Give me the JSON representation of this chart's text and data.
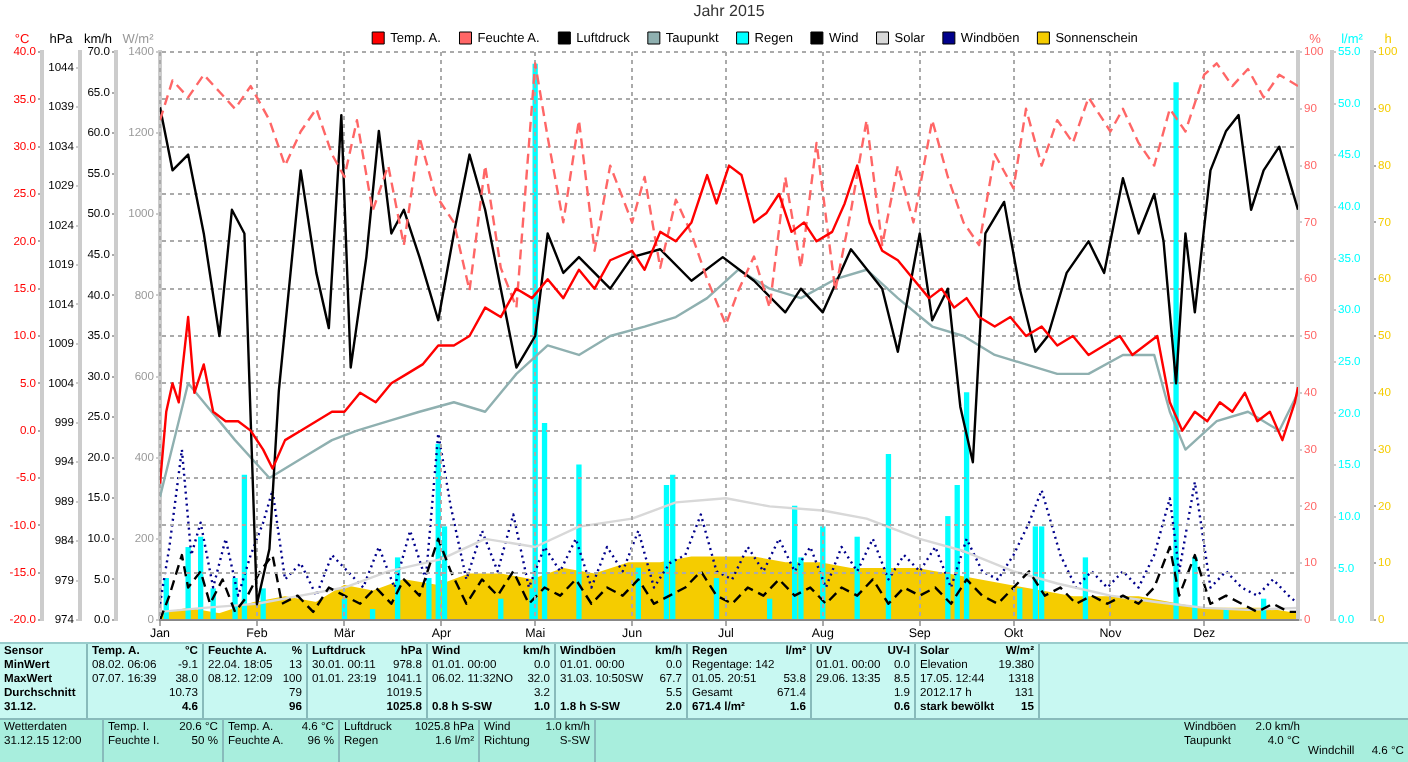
{
  "chart_data": [
    {
      "type": "line",
      "title": "Jahr 2015",
      "grid": true,
      "legend": "top",
      "marker": "none",
      "xlim": [
        "2015-01-01",
        "2015-12-31"
      ],
      "xticks": [
        {
          "value": "2015-01-01",
          "label": "Jan"
        },
        {
          "value": "2015-02-01",
          "label": "Feb"
        },
        {
          "value": "2015-03-01",
          "label": "Mär"
        },
        {
          "value": "2015-04-01",
          "label": "Apr"
        },
        {
          "value": "2015-05-01",
          "label": "Mai"
        },
        {
          "value": "2015-06-01",
          "label": "Jun"
        },
        {
          "value": "2015-07-01",
          "label": "Jul"
        },
        {
          "value": "2015-08-01",
          "label": "Aug"
        },
        {
          "value": "2015-09-01",
          "label": "Sep"
        },
        {
          "value": "2015-10-01",
          "label": "Okt"
        },
        {
          "value": "2015-11-01",
          "label": "Nov"
        },
        {
          "value": "2015-12-01",
          "label": "Dez"
        }
      ],
      "ylabel": "°C",
      "ylim": [
        -20,
        40
      ],
      "yticks": [
        {
          "value": -20,
          "label": "-20.0"
        },
        {
          "value": -15,
          "label": "-15.0"
        },
        {
          "value": -10,
          "label": "-10.0"
        },
        {
          "value": -5,
          "label": "-5.0"
        },
        {
          "value": 0,
          "label": "0.0"
        },
        {
          "value": 5,
          "label": "5.0"
        },
        {
          "value": 10,
          "label": "10.0"
        },
        {
          "value": 15,
          "label": "15.0"
        },
        {
          "value": 20,
          "label": "20.0"
        },
        {
          "value": 25,
          "label": "25.0"
        },
        {
          "value": 30,
          "label": "30.0"
        },
        {
          "value": 35,
          "label": "35.0"
        },
        {
          "value": 40,
          "label": "40.0"
        }
      ],
      "y2label": "hPa",
      "y2lim": [
        974,
        1046
      ],
      "y2ticks": [
        974,
        979,
        984,
        989,
        994,
        999,
        1004,
        1009,
        1014,
        1019,
        1024,
        1029,
        1034,
        1039,
        1044
      ],
      "y3label": "%",
      "y3lim": [
        0,
        100
      ],
      "y3ticks": [
        0,
        10,
        20,
        30,
        40,
        50,
        60,
        70,
        80,
        90,
        100
      ],
      "series": [
        {
          "name": "Temp. A.",
          "color": "#ff0000",
          "x": [
            "2015-01-01",
            "2015-01-03",
            "2015-01-05",
            "2015-01-07",
            "2015-01-10",
            "2015-01-12",
            "2015-01-15",
            "2015-01-18",
            "2015-01-22",
            "2015-01-26",
            "2015-01-30",
            "2015-02-03",
            "2015-02-06",
            "2015-02-10",
            "2015-02-15",
            "2015-02-20",
            "2015-02-25",
            "2015-03-01",
            "2015-03-06",
            "2015-03-11",
            "2015-03-16",
            "2015-03-21",
            "2015-03-26",
            "2015-03-31",
            "2015-04-05",
            "2015-04-10",
            "2015-04-15",
            "2015-04-20",
            "2015-04-25",
            "2015-04-30",
            "2015-05-05",
            "2015-05-10",
            "2015-05-15",
            "2015-05-20",
            "2015-05-25",
            "2015-06-01",
            "2015-06-05",
            "2015-06-10",
            "2015-06-15",
            "2015-06-20",
            "2015-06-25",
            "2015-06-28",
            "2015-07-02",
            "2015-07-06",
            "2015-07-10",
            "2015-07-14",
            "2015-07-18",
            "2015-07-22",
            "2015-07-26",
            "2015-07-30",
            "2015-08-04",
            "2015-08-08",
            "2015-08-12",
            "2015-08-16",
            "2015-08-20",
            "2015-08-25",
            "2015-08-30",
            "2015-09-04",
            "2015-09-08",
            "2015-09-12",
            "2015-09-16",
            "2015-09-20",
            "2015-09-25",
            "2015-09-30",
            "2015-10-05",
            "2015-10-10",
            "2015-10-15",
            "2015-10-20",
            "2015-10-25",
            "2015-10-30",
            "2015-11-04",
            "2015-11-08",
            "2015-11-12",
            "2015-11-16",
            "2015-11-20",
            "2015-11-24",
            "2015-11-28",
            "2015-12-02",
            "2015-12-06",
            "2015-12-10",
            "2015-12-14",
            "2015-12-18",
            "2015-12-22",
            "2015-12-26",
            "2015-12-30",
            "2015-12-31"
          ],
          "values": [
            -5.6,
            2,
            5,
            3,
            12,
            4,
            7,
            2,
            1,
            1,
            0,
            -2,
            -4,
            -1,
            0,
            1,
            2,
            2,
            4,
            3,
            5,
            6,
            7,
            9,
            9,
            10,
            13,
            12,
            15,
            14,
            16,
            14,
            17,
            15,
            18,
            19,
            17,
            21,
            20,
            22,
            27,
            24,
            28,
            27,
            22,
            23,
            25,
            21,
            22,
            20,
            21,
            24,
            28,
            22,
            19,
            18,
            16,
            14,
            15,
            13,
            14,
            12,
            11,
            12,
            10,
            11,
            9,
            10,
            8,
            9,
            10,
            8,
            9,
            10,
            3,
            0,
            2,
            1,
            3,
            2,
            4,
            1,
            2,
            -1,
            3,
            4.6
          ]
        },
        {
          "name": "Feuchte A.",
          "color": "#ff6666",
          "axis": "y3",
          "line_style": "dashed",
          "x": [
            "2015-01-01",
            "2015-01-05",
            "2015-01-10",
            "2015-01-15",
            "2015-01-20",
            "2015-01-25",
            "2015-01-30",
            "2015-02-05",
            "2015-02-10",
            "2015-02-15",
            "2015-02-20",
            "2015-02-25",
            "2015-03-01",
            "2015-03-05",
            "2015-03-10",
            "2015-03-15",
            "2015-03-20",
            "2015-03-25",
            "2015-03-30",
            "2015-04-05",
            "2015-04-10",
            "2015-04-15",
            "2015-04-20",
            "2015-04-25",
            "2015-05-01",
            "2015-05-05",
            "2015-05-10",
            "2015-05-15",
            "2015-05-20",
            "2015-05-25",
            "2015-06-01",
            "2015-06-05",
            "2015-06-10",
            "2015-06-15",
            "2015-06-20",
            "2015-06-25",
            "2015-07-01",
            "2015-07-05",
            "2015-07-10",
            "2015-07-15",
            "2015-07-20",
            "2015-07-25",
            "2015-07-30",
            "2015-08-05",
            "2015-08-10",
            "2015-08-15",
            "2015-08-20",
            "2015-08-25",
            "2015-08-30",
            "2015-09-05",
            "2015-09-10",
            "2015-09-15",
            "2015-09-20",
            "2015-09-25",
            "2015-10-01",
            "2015-10-05",
            "2015-10-10",
            "2015-10-15",
            "2015-10-20",
            "2015-10-25",
            "2015-11-01",
            "2015-11-05",
            "2015-11-10",
            "2015-11-15",
            "2015-11-20",
            "2015-11-25",
            "2015-12-01",
            "2015-12-05",
            "2015-12-10",
            "2015-12-15",
            "2015-12-20",
            "2015-12-25",
            "2015-12-31"
          ],
          "values": [
            88,
            95,
            92,
            96,
            93,
            90,
            94,
            88,
            80,
            86,
            90,
            82,
            78,
            88,
            72,
            80,
            66,
            85,
            75,
            70,
            58,
            80,
            62,
            55,
            98,
            85,
            70,
            88,
            65,
            80,
            70,
            78,
            62,
            74,
            68,
            60,
            52,
            58,
            64,
            55,
            78,
            62,
            84,
            58,
            72,
            88,
            66,
            80,
            70,
            88,
            78,
            70,
            66,
            82,
            76,
            90,
            80,
            88,
            84,
            92,
            86,
            90,
            84,
            80,
            90,
            86,
            96,
            98,
            94,
            97,
            92,
            96,
            94
          ]
        },
        {
          "name": "Luftdruck",
          "color": "#000000",
          "axis": "y2",
          "x": [
            "2015-01-01",
            "2015-01-05",
            "2015-01-10",
            "2015-01-15",
            "2015-01-20",
            "2015-01-24",
            "2015-01-28",
            "2015-02-01",
            "2015-02-05",
            "2015-02-08",
            "2015-02-15",
            "2015-02-20",
            "2015-02-24",
            "2015-02-28",
            "2015-03-03",
            "2015-03-08",
            "2015-03-12",
            "2015-03-16",
            "2015-03-20",
            "2015-03-25",
            "2015-03-31",
            "2015-04-05",
            "2015-04-10",
            "2015-04-15",
            "2015-04-20",
            "2015-04-25",
            "2015-04-28",
            "2015-05-01",
            "2015-05-05",
            "2015-05-10",
            "2015-05-15",
            "2015-05-20",
            "2015-05-25",
            "2015-06-01",
            "2015-06-10",
            "2015-06-20",
            "2015-06-30",
            "2015-07-10",
            "2015-07-20",
            "2015-07-25",
            "2015-08-01",
            "2015-08-10",
            "2015-08-20",
            "2015-08-25",
            "2015-09-01",
            "2015-09-05",
            "2015-09-10",
            "2015-09-14",
            "2015-09-18",
            "2015-09-22",
            "2015-09-28",
            "2015-10-03",
            "2015-10-08",
            "2015-10-12",
            "2015-10-18",
            "2015-10-25",
            "2015-10-30",
            "2015-11-05",
            "2015-11-10",
            "2015-11-15",
            "2015-11-18",
            "2015-11-22",
            "2015-11-25",
            "2015-11-28",
            "2015-12-03",
            "2015-12-08",
            "2015-12-12",
            "2015-12-16",
            "2015-12-20",
            "2015-12-25",
            "2015-12-31"
          ],
          "values": [
            1039,
            1031,
            1033,
            1023,
            1010,
            1026,
            1023,
            976,
            983,
            1003,
            1031,
            1018,
            1011,
            1038,
            1006,
            1020,
            1036,
            1023,
            1026,
            1020,
            1012,
            1023,
            1033,
            1026,
            1016,
            1006,
            1008,
            1010,
            1023,
            1018,
            1020,
            1018,
            1016,
            1020,
            1021,
            1017,
            1020,
            1017,
            1013,
            1016,
            1013,
            1021,
            1016,
            1008,
            1023,
            1012,
            1016,
            1001,
            994,
            1023,
            1027,
            1016,
            1008,
            1010,
            1018,
            1022,
            1018,
            1030,
            1023,
            1028,
            1022,
            1004,
            1023,
            1013,
            1031,
            1036,
            1038,
            1026,
            1031,
            1034,
            1026
          ]
        },
        {
          "name": "Taupunkt",
          "color": "#8fb0b0",
          "x": [
            "2015-01-01",
            "2015-01-10",
            "2015-01-15",
            "2015-01-25",
            "2015-02-05",
            "2015-02-15",
            "2015-02-25",
            "2015-03-05",
            "2015-03-15",
            "2015-03-25",
            "2015-04-05",
            "2015-04-15",
            "2015-04-25",
            "2015-05-05",
            "2015-05-15",
            "2015-05-25",
            "2015-06-05",
            "2015-06-15",
            "2015-06-25",
            "2015-07-05",
            "2015-07-15",
            "2015-07-25",
            "2015-08-05",
            "2015-08-15",
            "2015-08-25",
            "2015-09-05",
            "2015-09-15",
            "2015-09-25",
            "2015-10-05",
            "2015-10-15",
            "2015-10-25",
            "2015-11-05",
            "2015-11-15",
            "2015-11-20",
            "2015-11-25",
            "2015-12-05",
            "2015-12-15",
            "2015-12-25",
            "2015-12-31"
          ],
          "values": [
            -7,
            5,
            3,
            -1,
            -5,
            -3,
            -1,
            0,
            1,
            2,
            3,
            2,
            6,
            9,
            8,
            10,
            11,
            12,
            14,
            17,
            15,
            14,
            16,
            17,
            14,
            11,
            10,
            8,
            7,
            6,
            6,
            8,
            8,
            2,
            -2,
            1,
            2,
            0,
            4
          ]
        }
      ],
      "annotations": [
        "Sensor\nMinWert\nMaxWert\nDurchschnitt\n31.12.",
        "Temp. A.\t°C\n08.02. 06:06\t-9.1\n07.07. 16:39\t38.0\n\t10.73\n\t4.6",
        "Feuchte A.\t%\n22.04. 18:05\t13\n08.12. 12:09\t100\n\t79\n\t96",
        "Luftdruck\thPa\n30.01. 00:11\t978.8\n01.01. 23:19\t1041.1\n\t1019.5\n\t1025.8",
        "Wind\tkm/h\n01.01. 00:00\t0.0\n06.02. 11:32NO\t32.0\n\t3.2\n0.8 h S-SW\t1.0",
        "Windböen\tkm/h\n01.01. 00:00\t0.0\n31.03. 10:50SW\t67.7\n\t5.5\n1.8 h S-SW\t2.0",
        "Regen\tl/m²\nRegentage: 142\n01.05. 20:51\t53.8\nGesamt\t671.4\n671.4 l/m²\t1.6",
        "UV\tUV-I\n01.01. 00:00\t0.0\n29.06. 13:35\t8.5\n\t1.9\n\t0.6",
        "Solar\tW/m²\nElevation\t19.380\n17.05. 12:44\t1318\n2012.17 h\t131\nstark bewölkt\t15",
        "Wetterdaten\n31.12.15 12:00",
        "Temp. I.\t20.6 °C\nFeuchte I.\t50 %",
        "Temp. A.\t4.6 °C\nFeuchte A.\t96 %",
        "Luftdruck\t1025.8 hPa\nRegen\t1.6 l/m²",
        "Wind\t1.0 km/h\nRichtung\tS-SW",
        "Windböen\t2.0 km/h\nTaupunkt\t4.0 °C",
        "Windchill\t4.6 °C"
      ]
    },
    {
      "type": "line",
      "legend": "top",
      "marker": "none",
      "tick_labels": "y",
      "xlim": [
        "2015-01-01",
        "2015-12-31"
      ],
      "ylabel": "km/h",
      "ylim": [
        0,
        70
      ],
      "yticks": [
        {
          "value": 0,
          "label": "0.0"
        },
        {
          "value": 5,
          "label": "5.0"
        },
        {
          "value": 10,
          "label": "10.0"
        },
        {
          "value": 15,
          "label": "15.0"
        },
        {
          "value": 20,
          "label": "20.0"
        },
        {
          "value": 25,
          "label": "25.0"
        },
        {
          "value": 30,
          "label": "30.0"
        },
        {
          "value": 35,
          "label": "35.0"
        },
        {
          "value": 40,
          "label": "40.0"
        },
        {
          "value": 45,
          "label": "45.0"
        },
        {
          "value": 50,
          "label": "50.0"
        },
        {
          "value": 55,
          "label": "55.0"
        },
        {
          "value": 60,
          "label": "60.0"
        },
        {
          "value": 65,
          "label": "65.0"
        },
        {
          "value": 70,
          "label": "70.0"
        }
      ],
      "y2label": "W/m²",
      "y2lim": [
        0,
        1400
      ],
      "y2ticks": [
        0,
        200,
        400,
        600,
        800,
        1000,
        1200,
        1400
      ],
      "y3label": "l/m²",
      "y3lim": [
        0,
        55
      ],
      "y3ticks": [
        {
          "value": 0,
          "label": "0.0"
        },
        {
          "value": 5,
          "label": "5.0"
        },
        {
          "value": 10,
          "label": "10.0"
        },
        {
          "value": 15,
          "label": "15.0"
        },
        {
          "value": 20,
          "label": "20.0"
        },
        {
          "value": 25,
          "label": "25.0"
        },
        {
          "value": 30,
          "label": "30.0"
        },
        {
          "value": 35,
          "label": "35.0"
        },
        {
          "value": 40,
          "label": "40.0"
        },
        {
          "value": 45,
          "label": "45.0"
        },
        {
          "value": 50,
          "label": "50.0"
        },
        {
          "value": 55,
          "label": "55.0"
        }
      ],
      "series": [
        {
          "name": "Regen",
          "color": "#00ffff",
          "type": "bar",
          "axis": "y3",
          "x": [
            "2015-01-03",
            "2015-01-10",
            "2015-01-14",
            "2015-01-18",
            "2015-01-25",
            "2015-01-28",
            "2015-02-03",
            "2015-03-01",
            "2015-03-10",
            "2015-03-18",
            "2015-03-28",
            "2015-03-31",
            "2015-04-02",
            "2015-04-20",
            "2015-04-30",
            "2015-05-01",
            "2015-05-04",
            "2015-05-15",
            "2015-06-03",
            "2015-06-12",
            "2015-06-14",
            "2015-06-28",
            "2015-07-15",
            "2015-07-23",
            "2015-07-25",
            "2015-08-01",
            "2015-08-12",
            "2015-08-22",
            "2015-09-10",
            "2015-09-13",
            "2015-09-16",
            "2015-10-03",
            "2015-10-08",
            "2015-10-10",
            "2015-10-24",
            "2015-11-22",
            "2015-11-28",
            "2015-12-08",
            "2015-12-20"
          ],
          "values": [
            4,
            7,
            8,
            3,
            4,
            14,
            3,
            2,
            1,
            6,
            4,
            17,
            9,
            2,
            3,
            53.8,
            19,
            15,
            5,
            13,
            14,
            4,
            2,
            11,
            6,
            9,
            8,
            16,
            10,
            13,
            22,
            3,
            9,
            9,
            6,
            52,
            6,
            1,
            2
          ]
        },
        {
          "name": "Wind",
          "color": "#000000",
          "line_style": "dashed",
          "x": [
            "2015-01-01",
            "2015-01-04",
            "2015-01-08",
            "2015-01-10",
            "2015-01-14",
            "2015-01-17",
            "2015-01-21",
            "2015-01-25",
            "2015-01-29",
            "2015-02-02",
            "2015-02-06",
            "2015-02-09",
            "2015-02-14",
            "2015-02-19",
            "2015-02-24",
            "2015-03-01",
            "2015-03-06",
            "2015-03-11",
            "2015-03-16",
            "2015-03-20",
            "2015-03-25",
            "2015-03-31",
            "2015-04-04",
            "2015-04-09",
            "2015-04-14",
            "2015-04-19",
            "2015-04-24",
            "2015-04-29",
            "2015-05-04",
            "2015-05-09",
            "2015-05-14",
            "2015-05-19",
            "2015-05-24",
            "2015-05-29",
            "2015-06-03",
            "2015-06-08",
            "2015-06-13",
            "2015-06-18",
            "2015-06-23",
            "2015-06-28",
            "2015-07-03",
            "2015-07-08",
            "2015-07-13",
            "2015-07-18",
            "2015-07-23",
            "2015-07-28",
            "2015-08-02",
            "2015-08-07",
            "2015-08-12",
            "2015-08-17",
            "2015-08-22",
            "2015-08-27",
            "2015-09-01",
            "2015-09-06",
            "2015-09-11",
            "2015-09-16",
            "2015-09-21",
            "2015-09-26",
            "2015-10-01",
            "2015-10-06",
            "2015-10-11",
            "2015-10-16",
            "2015-10-21",
            "2015-10-26",
            "2015-10-31",
            "2015-11-05",
            "2015-11-10",
            "2015-11-15",
            "2015-11-20",
            "2015-11-23",
            "2015-11-28",
            "2015-12-03",
            "2015-12-08",
            "2015-12-13",
            "2015-12-18",
            "2015-12-23",
            "2015-12-28",
            "2015-12-31"
          ],
          "values": [
            0,
            3,
            8,
            4,
            6,
            2,
            5,
            1,
            3,
            6,
            8,
            2,
            3,
            1,
            4,
            3,
            2,
            4,
            2,
            5,
            3,
            10,
            6,
            2,
            5,
            3,
            6,
            2,
            4,
            3,
            5,
            2,
            4,
            3,
            5,
            2,
            3,
            4,
            6,
            3,
            2,
            4,
            3,
            5,
            3,
            4,
            2,
            4,
            3,
            5,
            2,
            4,
            3,
            4,
            2,
            5,
            3,
            2,
            4,
            6,
            3,
            4,
            2,
            3,
            2,
            3,
            2,
            4,
            9,
            3,
            8,
            2,
            3,
            2,
            1,
            2,
            1,
            1
          ]
        },
        {
          "name": "Solar",
          "color": "#d8d8d8",
          "axis": "y2",
          "x": [
            "2015-01-01",
            "2015-01-15",
            "2015-02-01",
            "2015-02-15",
            "2015-03-01",
            "2015-03-15",
            "2015-04-01",
            "2015-04-15",
            "2015-05-01",
            "2015-05-15",
            "2015-06-01",
            "2015-06-15",
            "2015-07-01",
            "2015-07-15",
            "2015-08-01",
            "2015-08-15",
            "2015-09-01",
            "2015-09-15",
            "2015-10-01",
            "2015-10-15",
            "2015-11-01",
            "2015-11-15",
            "2015-12-01",
            "2015-12-15",
            "2015-12-31"
          ],
          "values": [
            20,
            30,
            40,
            60,
            80,
            120,
            150,
            200,
            180,
            230,
            250,
            290,
            300,
            280,
            270,
            250,
            200,
            170,
            120,
            90,
            60,
            45,
            30,
            25,
            30
          ]
        },
        {
          "name": "Windböen",
          "color": "#00008b",
          "line_style": "dotted",
          "x": [
            "2015-01-01",
            "2015-01-04",
            "2015-01-08",
            "2015-01-11",
            "2015-01-14",
            "2015-01-18",
            "2015-01-22",
            "2015-01-26",
            "2015-01-30",
            "2015-02-03",
            "2015-02-06",
            "2015-02-10",
            "2015-02-15",
            "2015-02-20",
            "2015-02-25",
            "2015-03-02",
            "2015-03-07",
            "2015-03-12",
            "2015-03-17",
            "2015-03-22",
            "2015-03-27",
            "2015-03-31",
            "2015-04-04",
            "2015-04-09",
            "2015-04-14",
            "2015-04-19",
            "2015-04-24",
            "2015-04-29",
            "2015-05-04",
            "2015-05-09",
            "2015-05-14",
            "2015-05-19",
            "2015-05-24",
            "2015-05-29",
            "2015-06-03",
            "2015-06-08",
            "2015-06-13",
            "2015-06-18",
            "2015-06-23",
            "2015-06-28",
            "2015-07-03",
            "2015-07-08",
            "2015-07-13",
            "2015-07-18",
            "2015-07-23",
            "2015-07-28",
            "2015-08-02",
            "2015-08-07",
            "2015-08-12",
            "2015-08-17",
            "2015-08-22",
            "2015-08-27",
            "2015-09-01",
            "2015-09-06",
            "2015-09-11",
            "2015-09-16",
            "2015-09-21",
            "2015-09-26",
            "2015-10-01",
            "2015-10-06",
            "2015-10-10",
            "2015-10-16",
            "2015-10-21",
            "2015-10-26",
            "2015-10-31",
            "2015-11-05",
            "2015-11-10",
            "2015-11-15",
            "2015-11-20",
            "2015-11-23",
            "2015-11-28",
            "2015-12-03",
            "2015-12-08",
            "2015-12-13",
            "2015-12-18",
            "2015-12-23",
            "2015-12-28",
            "2015-12-31"
          ],
          "values": [
            2,
            9,
            21,
            8,
            12,
            4,
            10,
            3,
            8,
            12,
            16,
            5,
            7,
            3,
            8,
            6,
            4,
            9,
            4,
            11,
            5,
            23,
            14,
            5,
            11,
            6,
            13,
            4,
            9,
            6,
            10,
            4,
            9,
            6,
            11,
            4,
            7,
            8,
            13,
            6,
            5,
            9,
            6,
            10,
            6,
            9,
            4,
            9,
            6,
            10,
            5,
            8,
            6,
            9,
            4,
            10,
            6,
            5,
            8,
            12,
            16,
            8,
            4,
            6,
            4,
            6,
            4,
            8,
            15,
            6,
            17,
            4,
            6,
            4,
            3,
            5,
            3,
            2
          ]
        }
      ]
    },
    {
      "type": "area",
      "legend": "top",
      "marker": "none",
      "tick_labels": "y",
      "xlim": [
        "2015-01-01",
        "2015-12-31"
      ],
      "ylabel": "h",
      "ylim": [
        0,
        100
      ],
      "yticks": [
        0,
        10,
        20,
        30,
        40,
        50,
        60,
        70,
        80,
        90,
        100
      ],
      "series": [
        {
          "name": "Sonnenschein",
          "color": "#f5cc00",
          "x": [
            "2015-01-01",
            "2015-01-10",
            "2015-01-20",
            "2015-01-31",
            "2015-02-10",
            "2015-02-20",
            "2015-03-01",
            "2015-03-10",
            "2015-03-20",
            "2015-03-31",
            "2015-04-10",
            "2015-04-20",
            "2015-04-30",
            "2015-05-10",
            "2015-05-20",
            "2015-05-31",
            "2015-06-10",
            "2015-06-20",
            "2015-06-30",
            "2015-07-10",
            "2015-07-20",
            "2015-07-31",
            "2015-08-10",
            "2015-08-20",
            "2015-08-31",
            "2015-09-10",
            "2015-09-20",
            "2015-09-30",
            "2015-10-10",
            "2015-10-20",
            "2015-10-31",
            "2015-11-10",
            "2015-11-20",
            "2015-11-30",
            "2015-12-10",
            "2015-12-20",
            "2015-12-31"
          ],
          "values": [
            1,
            2,
            1,
            3,
            4,
            3,
            6,
            5,
            7,
            6,
            8,
            8,
            7,
            9,
            8,
            10,
            10,
            11,
            11,
            11,
            10,
            10,
            9,
            9,
            9,
            8,
            7,
            6,
            5,
            4,
            4,
            4,
            3,
            2,
            2,
            2,
            1
          ]
        }
      ]
    }
  ]
}
